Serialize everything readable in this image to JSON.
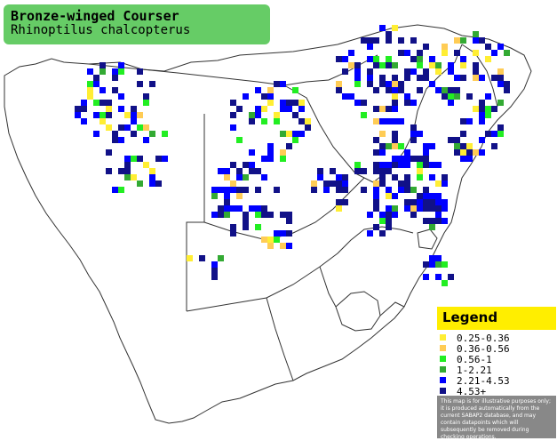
{
  "title": {
    "common_name": "Bronze-winged Courser",
    "scientific_name": "Rhinoptilus chalcopterus",
    "background": "#66cc66"
  },
  "legend": {
    "heading": "Legend",
    "header_color": "#ffee00",
    "classes": [
      {
        "label": "0.25-0.36",
        "color": "#ffee33"
      },
      {
        "label": "0.36-0.56",
        "color": "#ffcc55"
      },
      {
        "label": "0.56-1",
        "color": "#22ee22"
      },
      {
        "label": "1-2.21",
        "color": "#33aa33"
      },
      {
        "label": "2.21-4.53",
        "color": "#0000ff"
      },
      {
        "label": "4.53+",
        "color": "#111188"
      }
    ],
    "disclaimer": "This map is for illustrative purposes only; it is produced automatically from the current SABAP2 database, and may contain datapoints which will subsequently be removed during checking operations."
  },
  "map": {
    "land_color": "#ffffff",
    "border_color": "#333333"
  }
}
